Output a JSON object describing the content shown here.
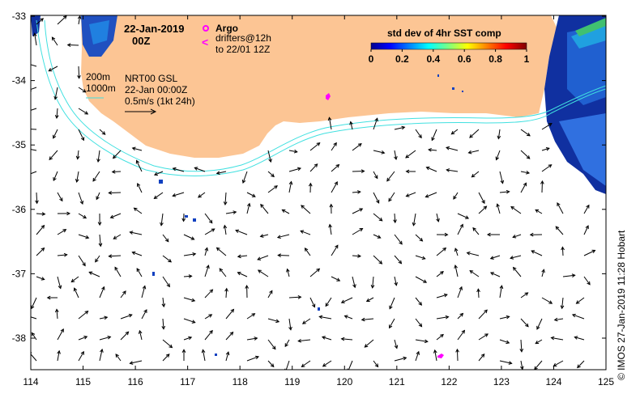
{
  "map": {
    "date_title": "22-Jan-2019",
    "time_title": "00Z",
    "legend_argo": "Argo",
    "legend_drifter_symbol": "<",
    "legend_drifters_line1": "drifters@12h",
    "legend_drifters_line2": "to 22/01 12Z",
    "isobath_200": "200m",
    "isobath_1000": "1000m",
    "product_line1": "NRT00 GSL",
    "product_line2": "22-Jan 00:00Z",
    "scale_label": "0.5m/s (1kt 24h)",
    "colorbar": {
      "title": "std dev of 4hr SST comp",
      "ticks": [
        "0",
        "0.2",
        "0.4",
        "0.6",
        "0.8",
        "1"
      ]
    },
    "credit": "©  IMOS 27-Jan-2019 11:28 Hobart",
    "x_ticks": [
      "114",
      "115",
      "116",
      "117",
      "118",
      "119",
      "120",
      "121",
      "122",
      "123",
      "124",
      "125"
    ],
    "y_ticks": [
      "-33",
      "-34",
      "-35",
      "-36",
      "-37",
      "-38"
    ],
    "colors": {
      "land": "#fcc594",
      "isobath": "#40e0e0",
      "argo": "#ff00ff",
      "vectors": "#000000"
    }
  }
}
